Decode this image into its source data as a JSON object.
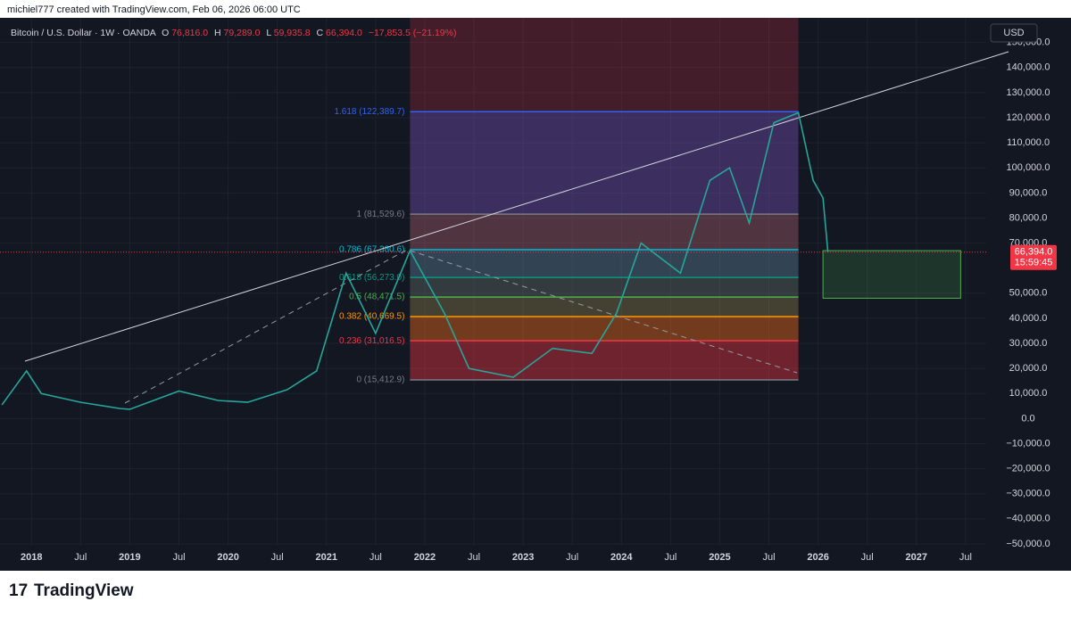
{
  "header": "michiel777 created with TradingView.com, Feb 06, 2026 06:00 UTC",
  "legend": {
    "symbol": "Bitcoin / U.S. Dollar · 1W · OANDA",
    "ohlc": [
      {
        "k": "O",
        "v": "76,816.0"
      },
      {
        "k": "H",
        "v": "79,289.0"
      },
      {
        "k": "L",
        "v": "59,935.8"
      },
      {
        "k": "C",
        "v": "66,394.0"
      }
    ],
    "change": "−17,853.5 (−21.19%)"
  },
  "currency": "USD",
  "price_tag": {
    "value": 66394,
    "label": "66,394.0",
    "countdown": "15:59:45"
  },
  "logo": "TradingView",
  "chart_data": {
    "type": "line",
    "color": "#26a69a",
    "xlim": [
      2017.68,
      2027.71
    ],
    "ylim": [
      -55000,
      157000
    ],
    "xticks": [
      2018,
      {
        "value": 2018.5,
        "label": "Jul"
      },
      2019,
      {
        "value": 2019.5,
        "label": "Jul"
      },
      2020,
      {
        "value": 2020.5,
        "label": "Jul"
      },
      2021,
      {
        "value": 2021.5,
        "label": "Jul"
      },
      2022,
      {
        "value": 2022.5,
        "label": "Jul"
      },
      2023,
      {
        "value": 2023.5,
        "label": "Jul"
      },
      2024,
      {
        "value": 2024.5,
        "label": "Jul"
      },
      2025,
      {
        "value": 2025.5,
        "label": "Jul"
      },
      2026,
      {
        "value": 2026.5,
        "label": "Jul"
      },
      2027,
      {
        "value": 2027.5,
        "label": "Jul"
      }
    ],
    "yticks": [
      {
        "value": 150000,
        "label": "150,000.0"
      },
      {
        "value": 140000,
        "label": "140,000.0"
      },
      {
        "value": 130000,
        "label": "130,000.0"
      },
      {
        "value": 120000,
        "label": "120,000.0"
      },
      {
        "value": 110000,
        "label": "110,000.0"
      },
      {
        "value": 100000,
        "label": "100,000.0"
      },
      {
        "value": 90000,
        "label": "90,000.0"
      },
      {
        "value": 80000,
        "label": "80,000.0"
      },
      {
        "value": 70000,
        "label": "70,000.0"
      },
      {
        "value": 50000,
        "label": "50,000.0"
      },
      {
        "value": 40000,
        "label": "40,000.0"
      },
      {
        "value": 30000,
        "label": "30,000.0"
      },
      {
        "value": 20000,
        "label": "20,000.0"
      },
      {
        "value": 10000,
        "label": "10,000.0"
      },
      {
        "value": 0,
        "label": "0.0"
      },
      {
        "value": -10000,
        "label": "−10,000.0"
      },
      {
        "value": -20000,
        "label": "−20,000.0"
      },
      {
        "value": -30000,
        "label": "−30,000.0"
      },
      {
        "value": -40000,
        "label": "−40,000.0"
      },
      {
        "value": -50000,
        "label": "−50,000.0"
      }
    ],
    "x": [
      2017.7,
      2017.95,
      2018.1,
      2018.5,
      2018.9,
      2019.0,
      2019.5,
      2019.9,
      2020.2,
      2020.6,
      2020.9,
      2021.2,
      2021.5,
      2021.85,
      2022.2,
      2022.45,
      2022.9,
      2023.3,
      2023.7,
      2023.95,
      2024.2,
      2024.6,
      2024.9,
      2025.1,
      2025.3,
      2025.55,
      2025.8,
      2025.95,
      2026.05,
      2026.1
    ],
    "values": [
      5500,
      19000,
      10000,
      6500,
      4000,
      3700,
      11000,
      7200,
      6500,
      11500,
      19000,
      58000,
      34000,
      67000,
      42000,
      20000,
      16500,
      28000,
      26000,
      42000,
      70000,
      58000,
      95000,
      100000,
      78000,
      118000,
      122000,
      95000,
      88000,
      66394
    ],
    "fib": {
      "start": 2021.85,
      "end": 2025.8,
      "levels": [
        {
          "label": "1.618 (122,389.7)",
          "value": 122389.7,
          "color": "#2962ff"
        },
        {
          "label": "1 (81,529.6)",
          "value": 81529.6,
          "color": "#787b86"
        },
        {
          "label": "0.786 (67,380.6)",
          "value": 67380.6,
          "color": "#00bcd4"
        },
        {
          "label": "0.618 (56,273.0)",
          "value": 56273.0,
          "color": "#089981"
        },
        {
          "label": "0.5 (48,471.5)",
          "value": 48471.5,
          "color": "#4caf50"
        },
        {
          "label": "0.382 (40,669.5)",
          "value": 40669.5,
          "color": "#ff9800"
        },
        {
          "label": "0.236 (31,016.5)",
          "value": 31016.5,
          "color": "#f23645"
        },
        {
          "label": "0 (15,412.9)",
          "value": 15412.9,
          "color": "#787b86"
        }
      ]
    },
    "zone": {
      "start": 2026.05,
      "end": 2027.45,
      "low": 48000,
      "high": 67000
    }
  }
}
